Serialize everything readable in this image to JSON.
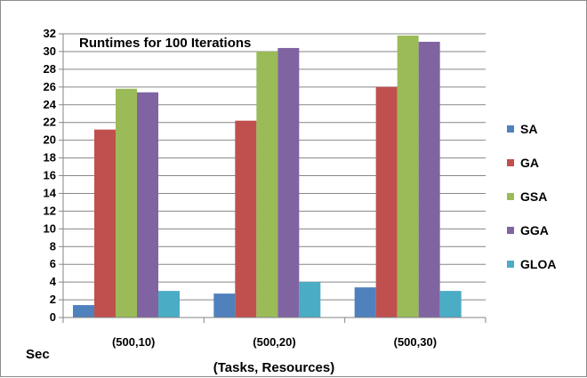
{
  "chart_data": {
    "type": "bar",
    "title": "Runtimes for 100 Iterations",
    "ylabel": "Sec",
    "xlabel": "(Tasks, Resources)",
    "categories": [
      "(500,10)",
      "(500,20)",
      "(500,30)"
    ],
    "ylim": [
      0,
      32
    ],
    "ytick_step": 2,
    "grid": true,
    "legend_position": "right",
    "series": [
      {
        "name": "SA",
        "color": "#4f81bd",
        "values": [
          1.4,
          2.7,
          3.4
        ]
      },
      {
        "name": "GA",
        "color": "#c0504d",
        "values": [
          21.2,
          22.2,
          26.0
        ]
      },
      {
        "name": "GSA",
        "color": "#9bbb59",
        "values": [
          25.8,
          30.0,
          31.8
        ]
      },
      {
        "name": "GGA",
        "color": "#8064a2",
        "values": [
          25.4,
          30.4,
          31.1
        ]
      },
      {
        "name": "GLOA",
        "color": "#4bacc6",
        "values": [
          3.0,
          4.0,
          3.0
        ]
      }
    ]
  }
}
